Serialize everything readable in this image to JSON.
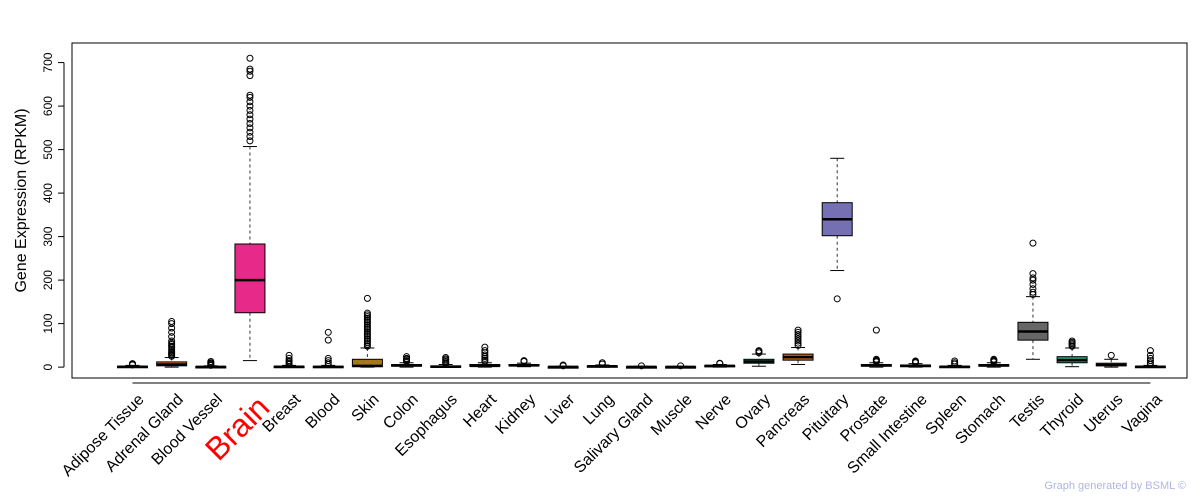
{
  "chart_data": {
    "type": "box",
    "ylabel": "Gene Expression (RPKM)",
    "ylim": [
      -25,
      745
    ],
    "yticks": [
      0,
      100,
      200,
      300,
      400,
      500,
      600,
      700
    ],
    "highlight_category": "Brain",
    "categories": [
      "Adipose Tissue",
      "Adrenal Gland",
      "Blood Vessel",
      "Brain",
      "Breast",
      "Blood",
      "Skin",
      "Colon",
      "Esophagus",
      "Heart",
      "Kidney",
      "Liver",
      "Lung",
      "Salivary Gland",
      "Muscle",
      "Nerve",
      "Ovary",
      "Pancreas",
      "Pituitary",
      "Prostate",
      "Small Intestine",
      "Spleen",
      "Stomach",
      "Testis",
      "Thyroid",
      "Uterus",
      "Vagina"
    ],
    "boxes": [
      {
        "color": "#f4a582",
        "q1": 0,
        "median": 1,
        "q3": 2,
        "whisker_low": 0,
        "whisker_high": 4,
        "outliers": [
          5,
          7,
          8
        ]
      },
      {
        "color": "#d8702e",
        "q1": 3,
        "median": 6,
        "q3": 12,
        "whisker_low": 0,
        "whisker_high": 22,
        "outliers": [
          25,
          28,
          30,
          33,
          36,
          40,
          45,
          48,
          52,
          55,
          60,
          70,
          80,
          90,
          100,
          105
        ]
      },
      {
        "color": "#f4a582",
        "q1": 0,
        "median": 0.5,
        "q3": 1.5,
        "whisker_low": 0,
        "whisker_high": 3,
        "outliers": [
          4,
          6,
          8,
          10,
          13
        ]
      },
      {
        "color": "#e7298a",
        "q1": 125,
        "median": 200,
        "q3": 283,
        "whisker_low": 15,
        "whisker_high": 507,
        "outliers": [
          520,
          530,
          540,
          550,
          560,
          570,
          580,
          590,
          600,
          610,
          620,
          625,
          670,
          680,
          685,
          710
        ]
      },
      {
        "color": "#f4a582",
        "q1": 0,
        "median": 1,
        "q3": 2,
        "whisker_low": 0,
        "whisker_high": 4,
        "outliers": [
          6,
          9,
          12,
          15,
          20,
          27
        ]
      },
      {
        "color": "#d8702e",
        "q1": 0,
        "median": 0.5,
        "q3": 2,
        "whisker_low": 0,
        "whisker_high": 4,
        "outliers": [
          6,
          10,
          15,
          20,
          62,
          80
        ]
      },
      {
        "color": "#a6761d",
        "q1": 1,
        "median": 3,
        "q3": 18,
        "whisker_low": 0,
        "whisker_high": 44,
        "outliers": [
          48,
          52,
          56,
          60,
          64,
          68,
          72,
          76,
          80,
          84,
          88,
          92,
          96,
          100,
          104,
          108,
          112,
          116,
          120,
          124,
          158
        ]
      },
      {
        "color": "#f4a582",
        "q1": 2,
        "median": 4,
        "q3": 6,
        "whisker_low": 0,
        "whisker_high": 10,
        "outliers": [
          13,
          15,
          18,
          20,
          24
        ]
      },
      {
        "color": "#f4a582",
        "q1": 0,
        "median": 1,
        "q3": 3,
        "whisker_low": 0,
        "whisker_high": 6,
        "outliers": [
          8,
          10,
          13,
          16,
          19,
          22
        ]
      },
      {
        "color": "#f4a582",
        "q1": 2,
        "median": 3,
        "q3": 6,
        "whisker_low": 0,
        "whisker_high": 10,
        "outliers": [
          13,
          16,
          20,
          24,
          28,
          33,
          38,
          46
        ]
      },
      {
        "color": "#f4a582",
        "q1": 3,
        "median": 4,
        "q3": 6,
        "whisker_low": 1,
        "whisker_high": 9,
        "outliers": [
          13,
          15
        ]
      },
      {
        "color": "#f4a582",
        "q1": 0,
        "median": 0.5,
        "q3": 1,
        "whisker_low": 0,
        "whisker_high": 2,
        "outliers": [
          3,
          5
        ]
      },
      {
        "color": "#f4a582",
        "q1": 1,
        "median": 2,
        "q3": 3,
        "whisker_low": 0,
        "whisker_high": 5,
        "outliers": [
          7,
          10
        ]
      },
      {
        "color": "#f4a582",
        "q1": 0,
        "median": 0.5,
        "q3": 1,
        "whisker_low": 0,
        "whisker_high": 2,
        "outliers": [
          3
        ]
      },
      {
        "color": "#f4a582",
        "q1": 0,
        "median": 0.5,
        "q3": 1,
        "whisker_low": 0,
        "whisker_high": 2,
        "outliers": [
          3
        ]
      },
      {
        "color": "#f4a582",
        "q1": 2,
        "median": 3,
        "q3": 4,
        "whisker_low": 0,
        "whisker_high": 6,
        "outliers": [
          8,
          9
        ]
      },
      {
        "color": "#1b9e77",
        "q1": 9,
        "median": 13,
        "q3": 18,
        "whisker_low": 2,
        "whisker_high": 30,
        "outliers": [
          33,
          36,
          38
        ]
      },
      {
        "color": "#d95f02",
        "q1": 16,
        "median": 23,
        "q3": 30,
        "whisker_low": 6,
        "whisker_high": 45,
        "outliers": [
          50,
          55,
          60,
          65,
          70,
          75,
          80,
          85
        ]
      },
      {
        "color": "#7570b3",
        "q1": 302,
        "median": 340,
        "q3": 378,
        "whisker_low": 222,
        "whisker_high": 480,
        "outliers": [
          157
        ]
      },
      {
        "color": "#f4a582",
        "q1": 2,
        "median": 4,
        "q3": 6,
        "whisker_low": 0,
        "whisker_high": 10,
        "outliers": [
          12,
          14,
          16,
          18,
          85
        ]
      },
      {
        "color": "#f4a582",
        "q1": 1,
        "median": 3,
        "q3": 5,
        "whisker_low": 0,
        "whisker_high": 8,
        "outliers": [
          10,
          12,
          14
        ]
      },
      {
        "color": "#f4a582",
        "q1": 0,
        "median": 1,
        "q3": 2,
        "whisker_low": 0,
        "whisker_high": 4,
        "outliers": [
          7,
          10,
          14
        ]
      },
      {
        "color": "#f4a582",
        "q1": 2,
        "median": 4,
        "q3": 6,
        "whisker_low": 0,
        "whisker_high": 10,
        "outliers": [
          12,
          14,
          16,
          18
        ]
      },
      {
        "color": "#666666",
        "q1": 62,
        "median": 82,
        "q3": 103,
        "whisker_low": 18,
        "whisker_high": 162,
        "outliers": [
          167,
          172,
          180,
          190,
          200,
          205,
          215,
          285
        ]
      },
      {
        "color": "#1b9e77",
        "q1": 10,
        "median": 16,
        "q3": 24,
        "whisker_low": 1,
        "whisker_high": 44,
        "outliers": [
          48,
          51,
          54,
          57,
          60
        ]
      },
      {
        "color": "#d8702e",
        "q1": 3,
        "median": 5,
        "q3": 9,
        "whisker_low": 0,
        "whisker_high": 18,
        "outliers": [
          27
        ]
      },
      {
        "color": "#f4a582",
        "q1": 0,
        "median": 1,
        "q3": 2,
        "whisker_low": 0,
        "whisker_high": 4,
        "outliers": [
          6,
          10,
          15,
          20,
          27,
          38
        ]
      }
    ]
  },
  "credit": "Graph generated by BSML ©"
}
